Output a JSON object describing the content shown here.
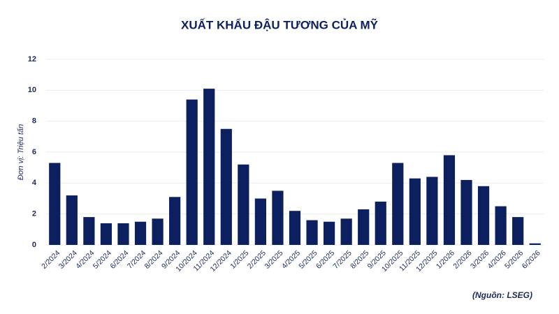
{
  "chart_data": {
    "type": "bar",
    "title": "XUẤT KHẨU ĐẬU TƯƠNG CỦA MỸ",
    "y_label": "Đơn vị: Triệu tấn",
    "source": "(Nguồn: LSEG)",
    "categories": [
      "2/2024",
      "3/2024",
      "4/2024",
      "5/2024",
      "6/2024",
      "7/2024",
      "8/2024",
      "9/2024",
      "10/2024",
      "11/2024",
      "12/2024",
      "1/2025",
      "2/2025",
      "3/2025",
      "4/2025",
      "5/2025",
      "6/2025",
      "7/2025",
      "8/2025",
      "9/2025",
      "10/2025",
      "11/2025",
      "12/2025",
      "1/2026",
      "2/2026",
      "3/2026",
      "4/2026",
      "5/2026",
      "6/2026"
    ],
    "values": [
      5.3,
      3.2,
      1.8,
      1.4,
      1.4,
      1.5,
      1.7,
      3.1,
      9.4,
      10.1,
      7.5,
      5.2,
      3.0,
      3.5,
      2.2,
      1.6,
      1.5,
      1.7,
      2.3,
      2.8,
      5.3,
      4.3,
      4.4,
      5.8,
      4.2,
      3.8,
      2.5,
      1.8,
      0.1
    ],
    "color": "#0c1f5e",
    "ylim": [
      0,
      12
    ],
    "yticks": [
      0,
      2,
      4,
      6,
      8,
      10,
      12
    ],
    "grid": true
  }
}
